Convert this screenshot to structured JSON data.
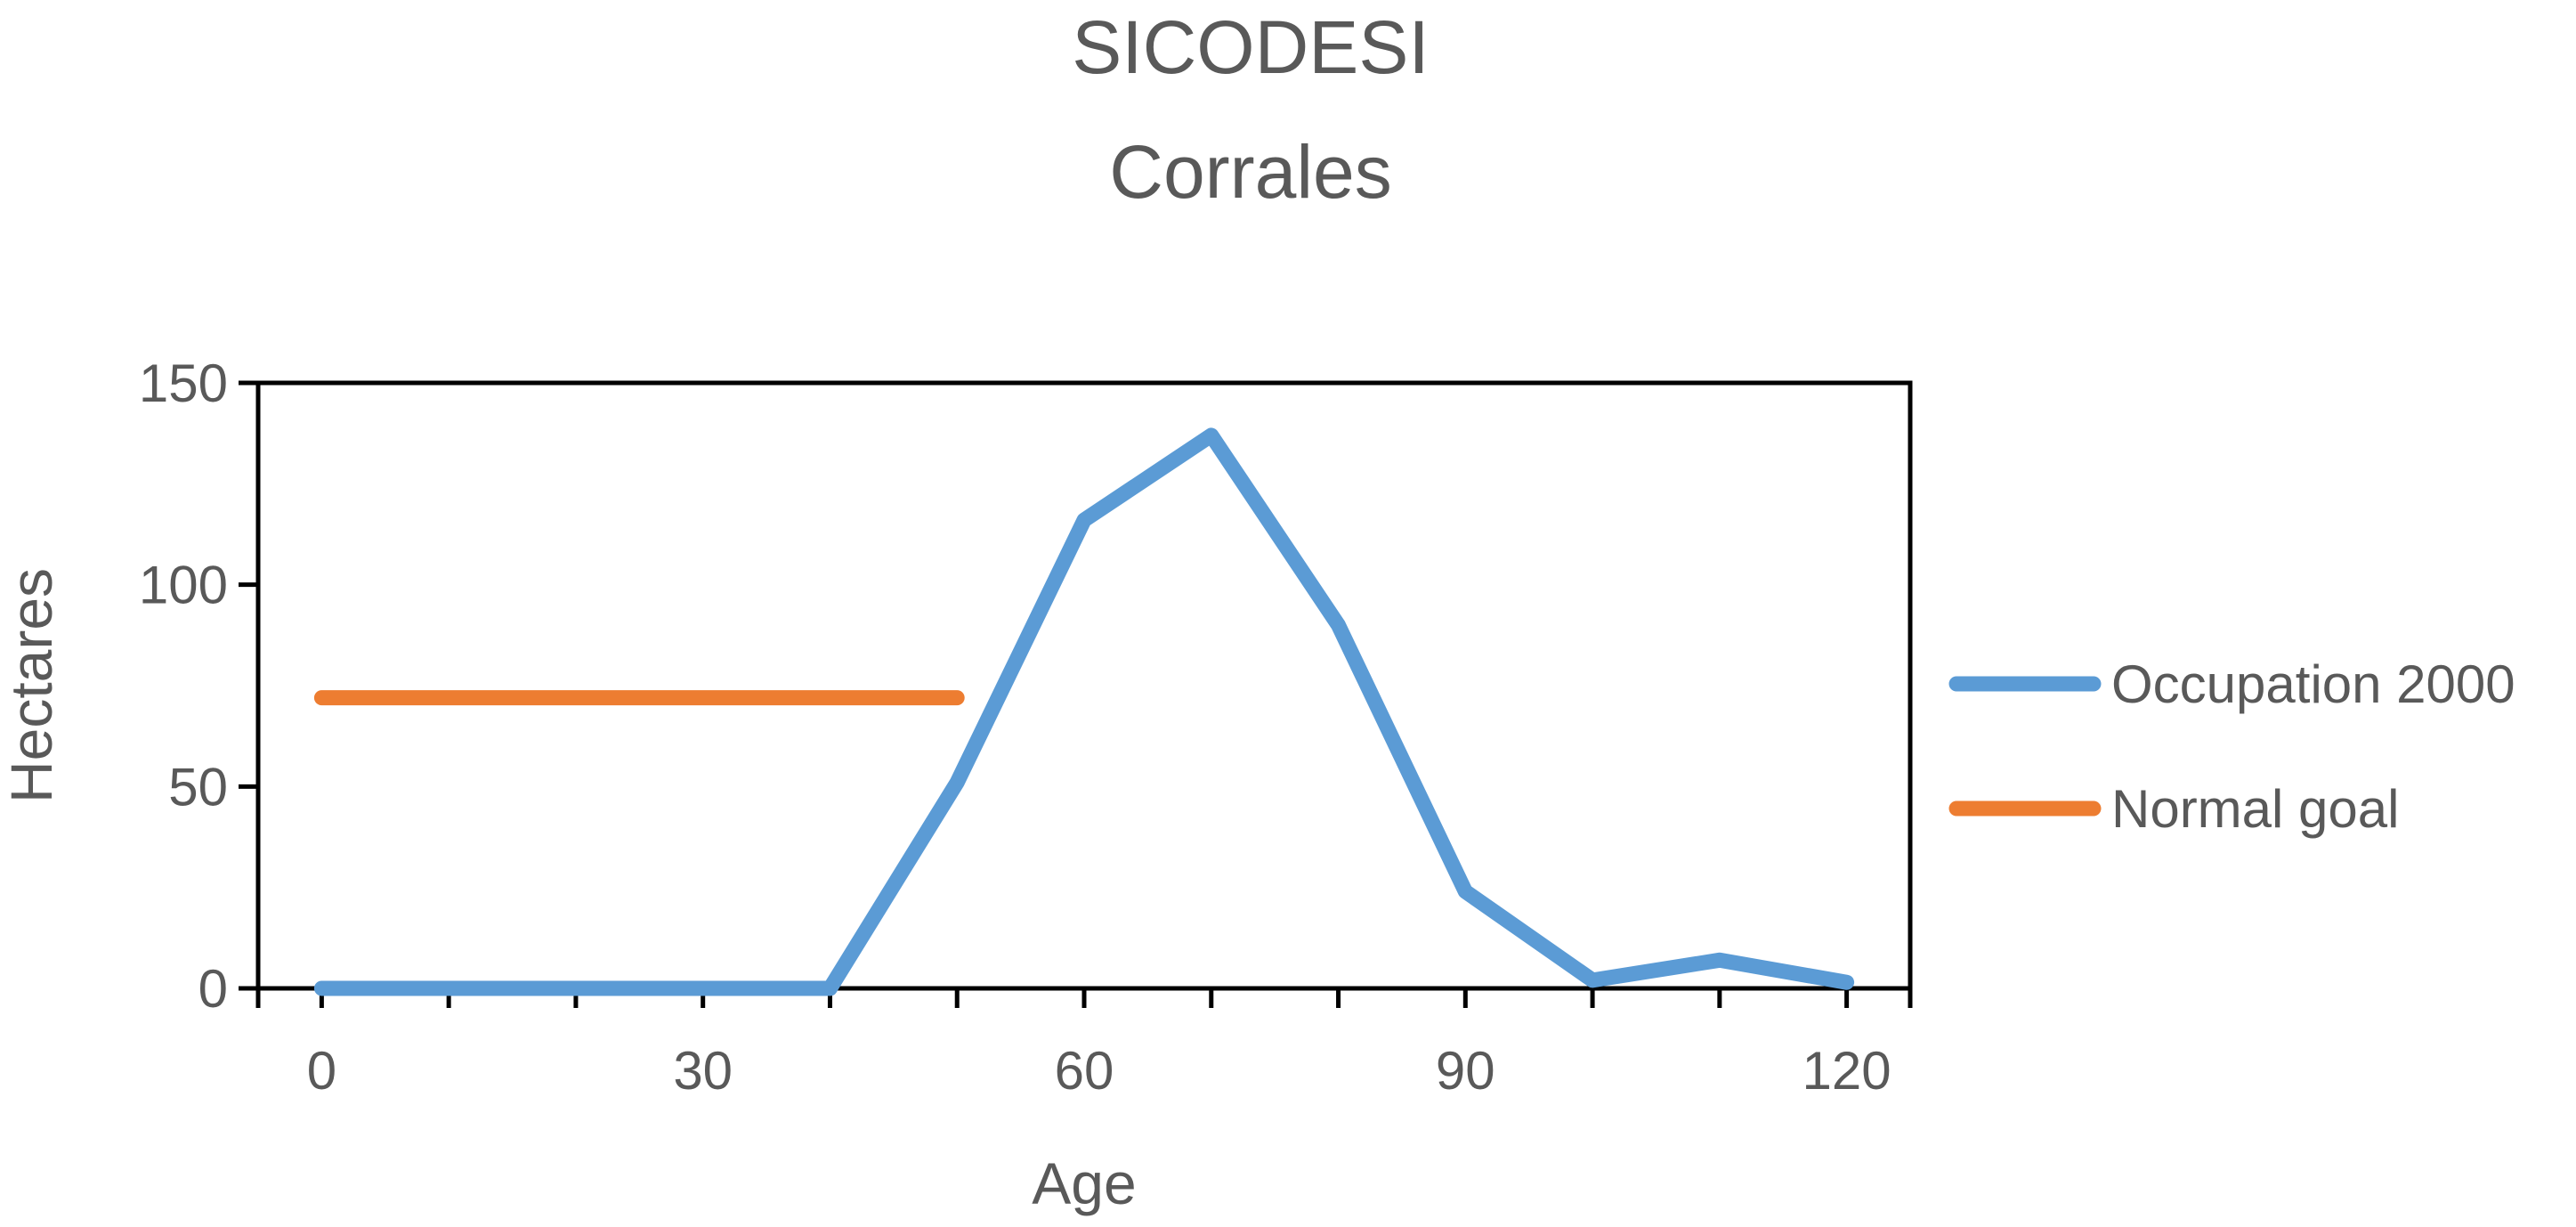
{
  "chart_data": {
    "type": "line",
    "title": "SICODESI",
    "subtitle": "Corrales",
    "xlabel": "Age",
    "ylabel": "Hectares",
    "xlim": [
      -5,
      125
    ],
    "ylim": [
      0,
      150
    ],
    "x_ticks": [
      0,
      30,
      60,
      90,
      120
    ],
    "x_tick_labels": [
      "0",
      "30",
      "60",
      "90",
      "120"
    ],
    "x_minor_ticks": [
      10,
      20,
      40,
      50,
      70,
      80,
      100,
      110
    ],
    "y_ticks": [
      0,
      50,
      100,
      150
    ],
    "y_tick_labels": [
      "0",
      "50",
      "100",
      "150"
    ],
    "grid": false,
    "legend_position": "right",
    "series": [
      {
        "name": "Occupation 2000",
        "color": "#5B9BD5",
        "x": [
          0,
          10,
          20,
          30,
          40,
          50,
          60,
          70,
          80,
          90,
          100,
          110,
          120
        ],
        "values": [
          0,
          0,
          0,
          0,
          0,
          51,
          116,
          137,
          90,
          24,
          2,
          7,
          1.5
        ]
      },
      {
        "name": "Normal goal",
        "color": "#ED7D31",
        "x": [
          0,
          50
        ],
        "values": [
          72,
          72
        ]
      }
    ]
  }
}
